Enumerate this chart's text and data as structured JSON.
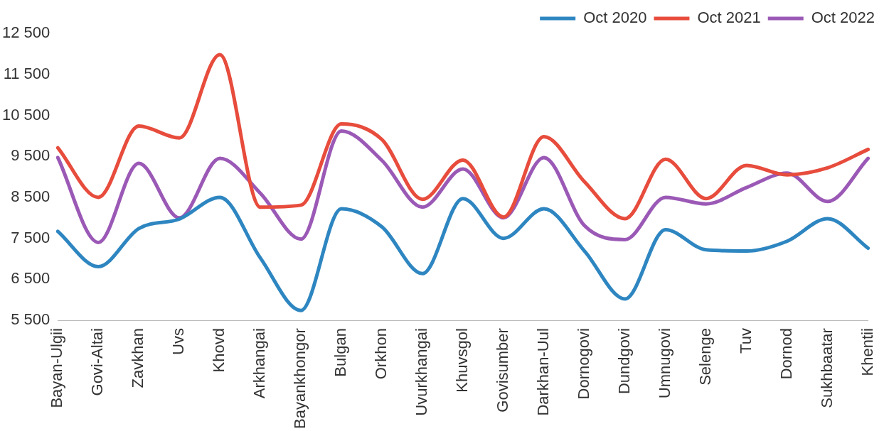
{
  "chart_data": {
    "type": "line",
    "categories": [
      "Bayan-Ulgii",
      "Govi-Altai",
      "Zavkhan",
      "Uvs",
      "Khovd",
      "Arkhangai",
      "Bayankhongor",
      "Bulgan",
      "Orkhon",
      "Uvurkhangai",
      "Khuvsgol",
      "Govisumber",
      "Darkhan-Uul",
      "Dornogovi",
      "Dundgovi",
      "Umnugovi",
      "Selenge",
      "Tuv",
      "Dornod",
      "Sukhbaatar",
      "Khentii"
    ],
    "series": [
      {
        "name": "Oct 2020",
        "color": "#2e86c1",
        "values": [
          7670,
          6810,
          7740,
          7970,
          8500,
          7020,
          5740,
          8220,
          7780,
          6640,
          8470,
          7500,
          8220,
          7190,
          6020,
          7710,
          7220,
          7190,
          7430,
          7980,
          7260
        ]
      },
      {
        "name": "Oct 2021",
        "color": "#e74c3c",
        "values": [
          9710,
          8500,
          10240,
          9950,
          11980,
          8260,
          8310,
          10290,
          9910,
          8450,
          9410,
          8020,
          9980,
          8880,
          7980,
          9430,
          8470,
          9280,
          9050,
          9220,
          9670
        ]
      },
      {
        "name": "Oct 2022",
        "color": "#9b59b6",
        "values": [
          9470,
          7400,
          9330,
          8000,
          9450,
          8600,
          7480,
          10120,
          9400,
          8260,
          9190,
          8000,
          9470,
          7810,
          7470,
          8500,
          8340,
          8740,
          9090,
          8400,
          9450
        ]
      }
    ],
    "ylim": [
      5500,
      12500
    ],
    "yticks": [
      {
        "value": 5500,
        "label": "5 500"
      },
      {
        "value": 6500,
        "label": "6 500"
      },
      {
        "value": 7500,
        "label": "7 500"
      },
      {
        "value": 8500,
        "label": "8 500"
      },
      {
        "value": 9500,
        "label": "9 500"
      },
      {
        "value": 10500,
        "label": "10 500"
      },
      {
        "value": 11500,
        "label": "11 500"
      },
      {
        "value": 12500,
        "label": "12 500"
      }
    ],
    "grid": false,
    "legend": "top right",
    "marker": "none",
    "line_style": "solid"
  }
}
